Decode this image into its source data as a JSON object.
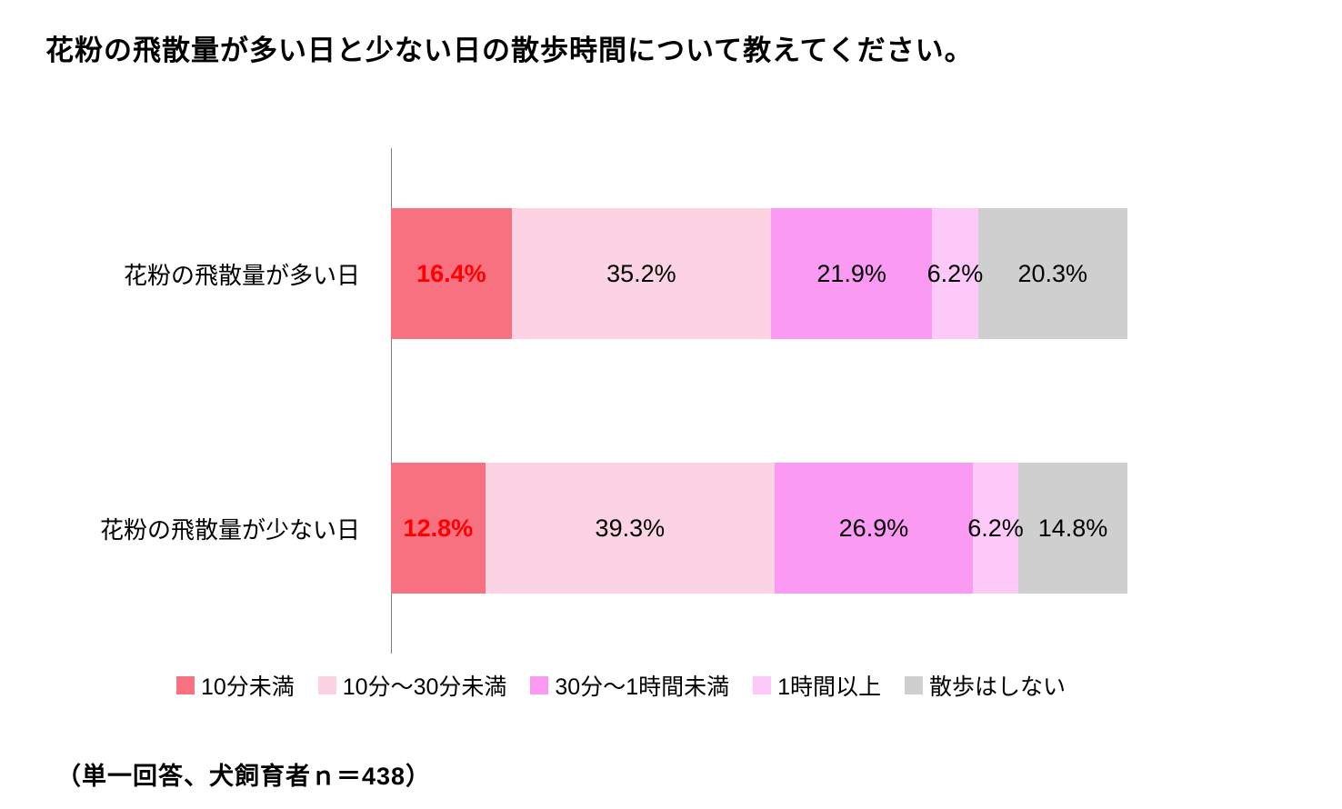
{
  "title": "花粉の飛散量が多い日と少ない日の散歩時間について教えてください。",
  "footnote": "（単一回答、犬飼育者ｎ＝438）",
  "chart_data": {
    "type": "bar",
    "orientation": "horizontal",
    "stacked": true,
    "unit": "%",
    "xlim": [
      0,
      100
    ],
    "grid": false,
    "legend_position": "bottom",
    "axis_color": "#7f7f7f",
    "categories": [
      "花粉の飛散量が多い日",
      "花粉の飛散量が少ない日"
    ],
    "series": [
      {
        "name": "10分未満",
        "color": "#F87181",
        "values": [
          16.4,
          12.8
        ],
        "label_color": "#FF0000",
        "label_bold": true
      },
      {
        "name": "10分～30分未満",
        "color": "#FBD3E2",
        "values": [
          35.2,
          39.3
        ],
        "label_color": "#000000",
        "label_bold": false
      },
      {
        "name": "30分～1時間未満",
        "color": "#FA9AF3",
        "values": [
          21.9,
          26.9
        ],
        "label_color": "#000000",
        "label_bold": false
      },
      {
        "name": "1時間以上",
        "color": "#FCC9F8",
        "values": [
          6.2,
          6.2
        ],
        "label_color": "#000000",
        "label_bold": false
      },
      {
        "name": "散歩はしない",
        "color": "#D0CFCF",
        "values": [
          20.3,
          14.8
        ],
        "label_color": "#000000",
        "label_bold": false
      }
    ],
    "value_labels": [
      [
        "16.4%",
        "35.2%",
        "21.9%",
        "6.2%",
        "20.3%"
      ],
      [
        "12.8%",
        "39.3%",
        "26.9%",
        "6.2%",
        "14.8%"
      ]
    ]
  }
}
